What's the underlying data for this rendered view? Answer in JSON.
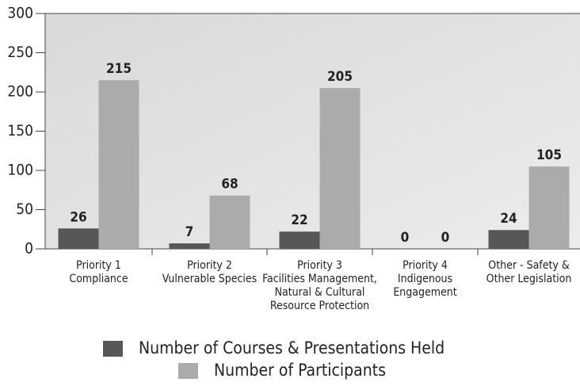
{
  "chart_data": {
    "type": "bar",
    "categories": [
      "Priority 1\nCompliance",
      "Priority 2\nVulnerable Species",
      "Priority 3\nFacilities Management,\nNatural & Cultural\nResource Protection",
      "Priority 4\nIndigenous\nEngagement",
      "Other - Safety &\nOther Legislation"
    ],
    "series": [
      {
        "name": "Number of Courses & Presentations Held",
        "color": "#575757",
        "values": [
          26,
          7,
          22,
          0,
          24
        ]
      },
      {
        "name": "Number of Participants",
        "color": "#ababab",
        "values": [
          215,
          68,
          205,
          0,
          105
        ]
      }
    ],
    "ylim": [
      0,
      300
    ],
    "yticks": [
      0,
      50,
      100,
      150,
      200,
      250,
      300
    ],
    "grid": false
  }
}
